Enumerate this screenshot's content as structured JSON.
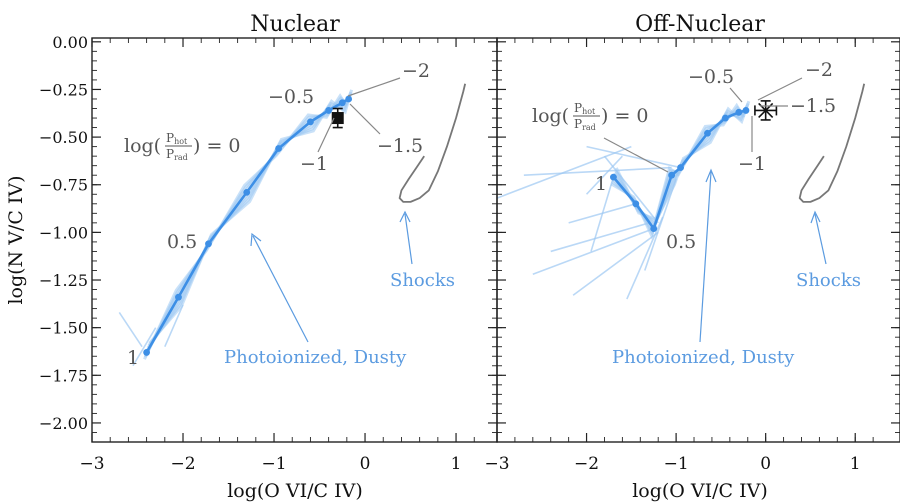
{
  "colors": {
    "series": "#3d8fe6",
    "band": "#9cc8f2",
    "annotation_gray": "#555555",
    "annotation_blue": "#5b9be0",
    "shock": "#777777",
    "frame": "#222222"
  },
  "figure": {
    "ylabel": "log(N V/C IV)",
    "xlabel": "log(O VI/C IV)",
    "xlim": [
      -3,
      1.45
    ],
    "ylim": [
      -2.1,
      0
    ],
    "xticks": [
      -3,
      -2,
      -1,
      0,
      1
    ],
    "xtick_labels": [
      "−3",
      "−2",
      "−1",
      "0",
      "1"
    ],
    "yticks": [
      0,
      -0.25,
      -0.5,
      -0.75,
      -1.0,
      -1.25,
      -1.5,
      -1.75,
      -2.0
    ],
    "ytick_labels": [
      "0.00",
      "−0.25",
      "−0.50",
      "−0.75",
      "−1.00",
      "−1.25",
      "−1.50",
      "−1.75",
      "−2.00"
    ]
  },
  "chart_data": [
    {
      "type": "scatter",
      "title": "Nuclear",
      "xlabel": "log(O VI/C IV)",
      "ylabel": "log(N V/C IV)",
      "xlim": [
        -3,
        1.45
      ],
      "ylim": [
        -2.1,
        0
      ],
      "series": [
        {
          "name": "Photoionized, Dusty",
          "x": [
            -2.4,
            -2.05,
            -1.72,
            -1.3,
            -0.95,
            -0.6,
            -0.4,
            -0.25,
            -0.18
          ],
          "y": [
            -1.63,
            -1.34,
            -1.06,
            -0.79,
            -0.56,
            -0.42,
            -0.36,
            -0.32,
            -0.3
          ]
        }
      ],
      "observation": {
        "x": -0.3,
        "y": -0.4,
        "yerr": 0.05,
        "xerr": 0.04
      },
      "shock_curve": {
        "x": [
          1.1,
          1.08,
          1.0,
          0.9,
          0.8,
          0.7,
          0.6,
          0.5,
          0.42,
          0.38,
          0.4,
          0.48,
          0.58,
          0.65
        ],
        "y": [
          -0.22,
          -0.26,
          -0.4,
          -0.55,
          -0.68,
          -0.78,
          -0.82,
          -0.84,
          -0.84,
          -0.82,
          -0.78,
          -0.72,
          -0.65,
          -0.6
        ]
      },
      "texts": {
        "logp_prefix": "log(",
        "frac_num": "P",
        "frac_num_sub": "hot",
        "frac_den": "P",
        "frac_den_sub": "rad",
        "logp_suffix": ") = 0",
        "lab_neg2": "−2",
        "lab_neg05": "−0.5",
        "lab_neg15": "−1.5",
        "lab_neg1": "−1",
        "lab_05": "0.5",
        "lab_1": "1",
        "shocks": "Shocks",
        "photo": "Photoionized, Dusty"
      }
    },
    {
      "type": "scatter",
      "title": "Off-Nuclear",
      "xlabel": "log(O VI/C IV)",
      "ylabel": "",
      "xlim": [
        -3,
        1.45
      ],
      "ylim": [
        -2.1,
        0
      ],
      "series": [
        {
          "name": "Photoionized, Dusty",
          "x": [
            -1.7,
            -1.45,
            -1.25,
            -1.05,
            -0.95,
            -0.65,
            -0.45,
            -0.3,
            -0.22
          ],
          "y": [
            -0.71,
            -0.85,
            -0.98,
            -0.7,
            -0.66,
            -0.48,
            -0.4,
            -0.37,
            -0.36
          ]
        }
      ],
      "observation": {
        "x": 0.0,
        "y": -0.36,
        "yerr": 0.05,
        "xerr": 0.12
      },
      "shock_curve": {
        "x": [
          1.1,
          1.08,
          1.0,
          0.9,
          0.8,
          0.7,
          0.6,
          0.5,
          0.42,
          0.38,
          0.4,
          0.48,
          0.58,
          0.65
        ],
        "y": [
          -0.22,
          -0.26,
          -0.4,
          -0.55,
          -0.68,
          -0.78,
          -0.82,
          -0.84,
          -0.84,
          -0.82,
          -0.78,
          -0.72,
          -0.65,
          -0.6
        ]
      },
      "texts": {
        "logp_prefix": "log(",
        "frac_num": "P",
        "frac_num_sub": "hot",
        "frac_den": "P",
        "frac_den_sub": "rad",
        "logp_suffix": ") = 0",
        "lab_neg05": "−0.5",
        "lab_neg2": "−2",
        "lab_neg15": "−1.5",
        "lab_neg1": "−1",
        "lab_1": "1",
        "lab_05": "0.5",
        "shocks": "Shocks",
        "photo": "Photoionized, Dusty"
      }
    }
  ]
}
